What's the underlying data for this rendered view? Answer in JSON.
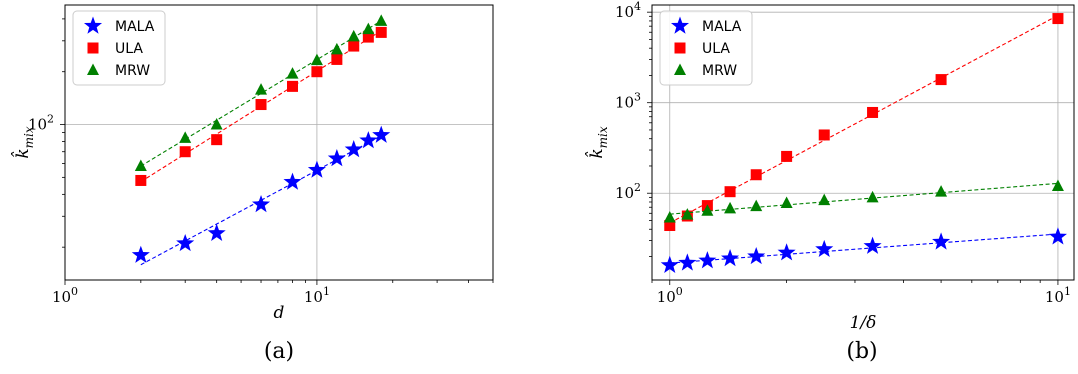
{
  "chart_data": [
    {
      "type": "scatter",
      "caption": "(a)",
      "xlabel": "d",
      "ylabel": "k̂_mix",
      "xscale": "log",
      "yscale": "log",
      "xlim": [
        1,
        50
      ],
      "ylim": [
        13,
        480
      ],
      "grid": true,
      "legend_position": "top-left",
      "x_ticks": [
        {
          "value": 1,
          "base": "10",
          "exp": "0"
        },
        {
          "value": 10,
          "base": "10",
          "exp": "1"
        }
      ],
      "y_ticks": [
        {
          "value": 100,
          "base": "10",
          "exp": "2"
        }
      ],
      "series": [
        {
          "name": "MALA",
          "color": "#0000ff",
          "marker": "star",
          "fit": "dashed",
          "x": [
            2,
            3,
            4,
            6,
            8,
            10,
            12,
            14,
            16,
            18
          ],
          "y": [
            18,
            21,
            24,
            35,
            47,
            55,
            64,
            72,
            81,
            87
          ]
        },
        {
          "name": "ULA",
          "color": "#ff0000",
          "marker": "square",
          "fit": "dashed",
          "x": [
            2,
            3,
            4,
            6,
            8,
            10,
            12,
            14,
            16,
            18
          ],
          "y": [
            48,
            70,
            82,
            130,
            165,
            200,
            235,
            280,
            315,
            335
          ]
        },
        {
          "name": "MRW",
          "color": "#008000",
          "marker": "triangle",
          "fit": "dashed",
          "x": [
            2,
            3,
            4,
            6,
            8,
            10,
            12,
            14,
            16,
            18
          ],
          "y": [
            58,
            84,
            100,
            158,
            195,
            233,
            268,
            318,
            350,
            390
          ]
        }
      ]
    },
    {
      "type": "scatter",
      "caption": "(b)",
      "xlabel": "1/δ",
      "ylabel": "k̂_mix",
      "xscale": "log",
      "yscale": "log",
      "xlim": [
        0.9,
        11
      ],
      "ylim": [
        11,
        12000
      ],
      "grid": true,
      "legend_position": "top-left",
      "x_ticks": [
        {
          "value": 1,
          "base": "10",
          "exp": "0"
        },
        {
          "value": 10,
          "base": "10",
          "exp": "1"
        }
      ],
      "y_ticks": [
        {
          "value": 100,
          "base": "10",
          "exp": "2"
        },
        {
          "value": 1000,
          "base": "10",
          "exp": "3"
        },
        {
          "value": 10000,
          "base": "10",
          "exp": "4"
        }
      ],
      "series": [
        {
          "name": "MALA",
          "color": "#0000ff",
          "marker": "star",
          "fit": "dashed",
          "x": [
            1,
            1.11,
            1.25,
            1.43,
            1.67,
            2,
            2.5,
            3.33,
            5,
            10
          ],
          "y": [
            16,
            17,
            18,
            19,
            20,
            22,
            24,
            26,
            29,
            33
          ]
        },
        {
          "name": "ULA",
          "color": "#ff0000",
          "marker": "square",
          "fit": "dashed",
          "x": [
            1,
            1.11,
            1.25,
            1.43,
            1.67,
            2,
            2.5,
            3.33,
            5,
            10
          ],
          "y": [
            44,
            56,
            73,
            104,
            160,
            255,
            440,
            780,
            1800,
            8500
          ]
        },
        {
          "name": "MRW",
          "color": "#008000",
          "marker": "triangle",
          "fit": "dashed",
          "x": [
            1,
            1.11,
            1.25,
            1.43,
            1.67,
            2,
            2.5,
            3.33,
            5,
            10
          ],
          "y": [
            54,
            58,
            64,
            68,
            72,
            78,
            84,
            90,
            104,
            120
          ]
        }
      ]
    }
  ]
}
